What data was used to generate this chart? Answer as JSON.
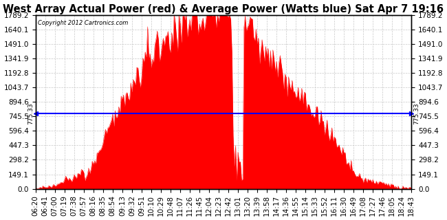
{
  "title": "West Array Actual Power (red) & Average Power (Watts blue) Sat Apr 7 19:16",
  "copyright": "Copyright 2012 Cartronics.com",
  "average_power": 775.33,
  "ylim": [
    0.0,
    1789.2
  ],
  "yticks": [
    0.0,
    149.1,
    298.2,
    447.3,
    596.4,
    745.5,
    894.6,
    1043.7,
    1192.8,
    1341.9,
    1491.0,
    1640.1,
    1789.2
  ],
  "background_color": "#ffffff",
  "fill_color": "#ff0000",
  "avg_line_color": "#0000ff",
  "grid_color": "#c8c8c8",
  "title_fontsize": 10.5,
  "tick_fontsize": 7.5,
  "time_labels": [
    "06:20",
    "06:41",
    "07:00",
    "07:19",
    "07:38",
    "07:57",
    "08:16",
    "08:35",
    "08:54",
    "09:13",
    "09:32",
    "09:51",
    "10:10",
    "10:29",
    "10:48",
    "11:07",
    "11:26",
    "11:45",
    "12:04",
    "12:23",
    "12:42",
    "13:01",
    "13:20",
    "13:39",
    "13:58",
    "14:17",
    "14:36",
    "14:55",
    "15:14",
    "15:33",
    "15:52",
    "16:11",
    "16:30",
    "16:49",
    "17:08",
    "17:27",
    "17:46",
    "18:05",
    "18:24",
    "18:43"
  ]
}
